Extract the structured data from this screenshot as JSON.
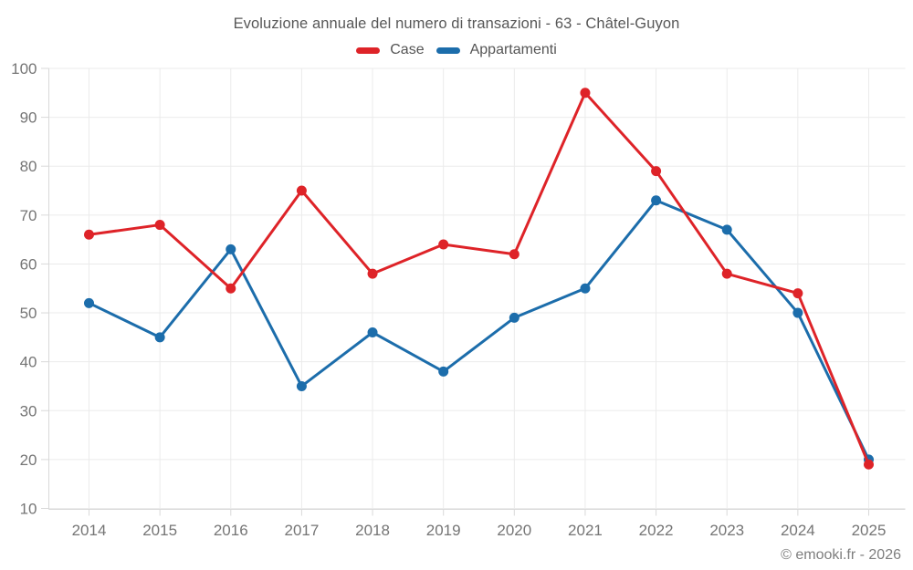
{
  "chart_data": {
    "type": "line",
    "title": "Evoluzione annuale del numero di transazioni - 63 - Châtel-Guyon",
    "categories": [
      "2014",
      "2015",
      "2016",
      "2017",
      "2018",
      "2019",
      "2020",
      "2021",
      "2022",
      "2023",
      "2024",
      "2025"
    ],
    "series": [
      {
        "name": "Case",
        "color": "#de2328",
        "values": [
          66,
          68,
          55,
          75,
          58,
          64,
          62,
          95,
          79,
          58,
          54,
          19
        ]
      },
      {
        "name": "Appartamenti",
        "color": "#1c6dab",
        "values": [
          52,
          45,
          63,
          35,
          46,
          38,
          49,
          55,
          73,
          67,
          50,
          20
        ]
      }
    ],
    "xlabel": "",
    "ylabel": "",
    "ylim": [
      10,
      100
    ],
    "yticks": [
      10,
      20,
      30,
      40,
      50,
      60,
      70,
      80,
      90,
      100
    ],
    "grid": true,
    "legend_position": "top",
    "grid_color": "#ebebeb",
    "axis_color": "#d9d9d9",
    "tick_label_color": "#757575"
  },
  "footer": "© emooki.fr - 2026"
}
